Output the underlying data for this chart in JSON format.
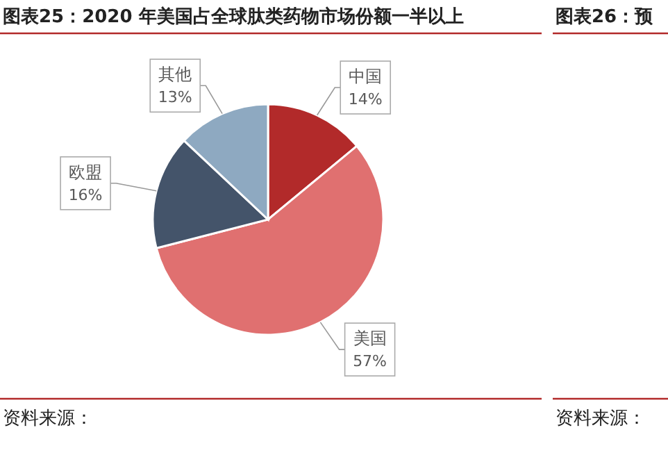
{
  "chart_data": {
    "type": "pie",
    "title": "图表25：2020 年美国占全球肽类药物市场份额一半以上",
    "categories": [
      "中国",
      "美国",
      "欧盟",
      "其他"
    ],
    "values": [
      14,
      57,
      16,
      13
    ],
    "colors": [
      "#b22a2a",
      "#e07070",
      "#44546a",
      "#8ea9c1"
    ],
    "value_labels": [
      "14%",
      "57%",
      "16%",
      "13%"
    ],
    "annotations": [
      "图表26：预",
      "资料来源：",
      "资料来源："
    ]
  }
}
